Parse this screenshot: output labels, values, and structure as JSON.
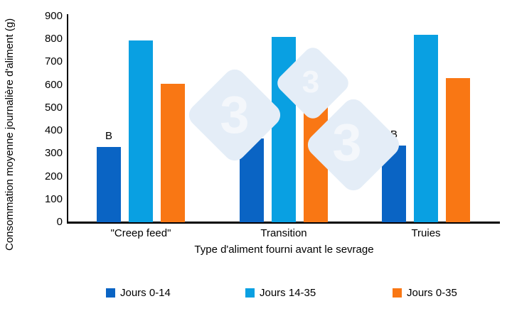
{
  "watermark": {
    "glyph": "3"
  },
  "chart_data": {
    "type": "bar",
    "title": "",
    "xlabel": "Type d'aliment fourni avant le sevrage",
    "ylabel": "Consommation moyenne journalière d'aliment (g)",
    "ylim": [
      0,
      900
    ],
    "ytick_step": 100,
    "yticks": [
      900,
      800,
      700,
      600,
      500,
      400,
      300,
      200,
      100,
      0
    ],
    "categories": [
      "\"Creep feed\"",
      "Transition",
      "Truies"
    ],
    "annotations": [
      "B",
      "A",
      "B"
    ],
    "series": [
      {
        "name": "Jours 0-14",
        "color": "#0A64C4",
        "values": [
          330,
          365,
          335
        ]
      },
      {
        "name": "Jours 14-35",
        "color": "#09A0E2",
        "values": [
          795,
          810,
          820
        ]
      },
      {
        "name": "Jours 0-35",
        "color": "#F97714",
        "values": [
          605,
          635,
          630
        ]
      }
    ],
    "legend_position": "bottom",
    "grid": false,
    "axis_color": "#000000",
    "watermark_color": "#E4EDF7"
  }
}
